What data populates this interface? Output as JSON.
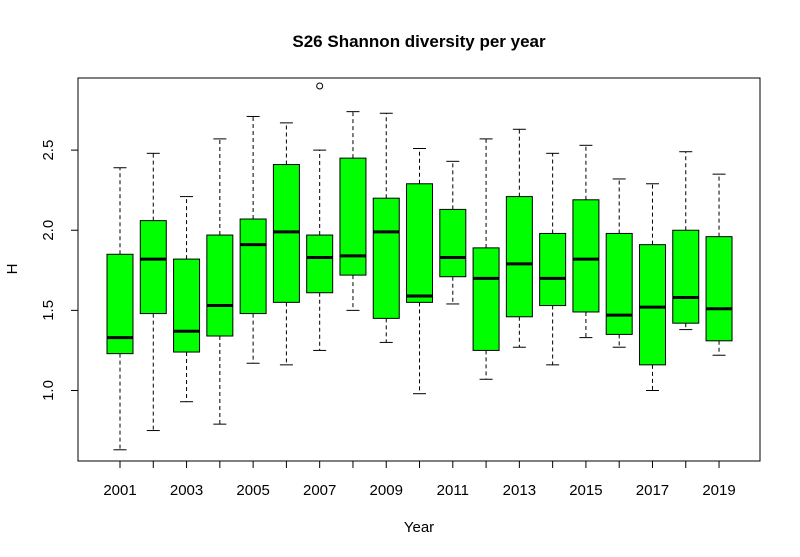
{
  "chart_data": {
    "type": "boxplot",
    "title": "S26 Shannon diversity per year",
    "xlabel": "Year",
    "ylabel": "H",
    "ylim": [
      0.56,
      2.95
    ],
    "yticks": [
      "1.0",
      "1.5",
      "2.0",
      "2.5"
    ],
    "x_tick_labels_shown": [
      "2001",
      "2003",
      "2005",
      "2007",
      "2009",
      "2011",
      "2013",
      "2015",
      "2017",
      "2019"
    ],
    "box_color": "#00ff00",
    "categories": [
      "2001",
      "2002",
      "2003",
      "2004",
      "2005",
      "2006",
      "2007",
      "2008",
      "2009",
      "2010",
      "2011",
      "2012",
      "2013",
      "2014",
      "2015",
      "2016",
      "2017",
      "2018",
      "2019"
    ],
    "boxes": [
      {
        "year": "2001",
        "min": 0.63,
        "q1": 1.23,
        "median": 1.33,
        "q3": 1.85,
        "max": 2.39
      },
      {
        "year": "2002",
        "min": 0.75,
        "q1": 1.48,
        "median": 1.82,
        "q3": 2.06,
        "max": 2.48
      },
      {
        "year": "2003",
        "min": 0.93,
        "q1": 1.24,
        "median": 1.37,
        "q3": 1.82,
        "max": 2.21
      },
      {
        "year": "2004",
        "min": 0.79,
        "q1": 1.34,
        "median": 1.53,
        "q3": 1.97,
        "max": 2.57
      },
      {
        "year": "2005",
        "min": 1.17,
        "q1": 1.48,
        "median": 1.91,
        "q3": 2.07,
        "max": 2.71
      },
      {
        "year": "2006",
        "min": 1.16,
        "q1": 1.55,
        "median": 1.99,
        "q3": 2.41,
        "max": 2.67
      },
      {
        "year": "2007",
        "min": 1.25,
        "q1": 1.61,
        "median": 1.83,
        "q3": 1.97,
        "max": 2.5,
        "outliers": [
          2.9
        ]
      },
      {
        "year": "2008",
        "min": 1.5,
        "q1": 1.72,
        "median": 1.84,
        "q3": 2.45,
        "max": 2.74
      },
      {
        "year": "2009",
        "min": 1.3,
        "q1": 1.45,
        "median": 1.99,
        "q3": 2.2,
        "max": 2.73
      },
      {
        "year": "2010",
        "min": 0.98,
        "q1": 1.55,
        "median": 1.59,
        "q3": 2.29,
        "max": 2.51
      },
      {
        "year": "2011",
        "min": 1.54,
        "q1": 1.71,
        "median": 1.83,
        "q3": 2.13,
        "max": 2.43
      },
      {
        "year": "2012",
        "min": 1.07,
        "q1": 1.25,
        "median": 1.7,
        "q3": 1.89,
        "max": 2.57
      },
      {
        "year": "2013",
        "min": 1.27,
        "q1": 1.46,
        "median": 1.79,
        "q3": 2.21,
        "max": 2.63
      },
      {
        "year": "2014",
        "min": 1.16,
        "q1": 1.53,
        "median": 1.7,
        "q3": 1.98,
        "max": 2.48
      },
      {
        "year": "2015",
        "min": 1.33,
        "q1": 1.49,
        "median": 1.82,
        "q3": 2.19,
        "max": 2.53
      },
      {
        "year": "2016",
        "min": 1.27,
        "q1": 1.35,
        "median": 1.47,
        "q3": 1.98,
        "max": 2.32
      },
      {
        "year": "2017",
        "min": 1.0,
        "q1": 1.16,
        "median": 1.52,
        "q3": 1.91,
        "max": 2.29
      },
      {
        "year": "2018",
        "min": 1.38,
        "q1": 1.42,
        "median": 1.58,
        "q3": 2.0,
        "max": 2.49
      },
      {
        "year": "2019",
        "min": 1.22,
        "q1": 1.31,
        "median": 1.51,
        "q3": 1.96,
        "max": 2.35
      }
    ]
  }
}
